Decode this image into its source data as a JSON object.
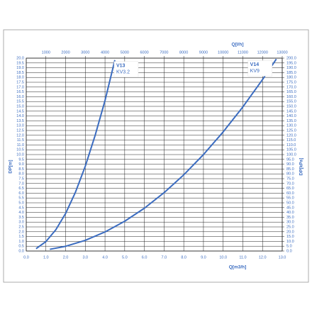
{
  "chart_data": {
    "type": "line",
    "xlabel": "Q[m3/h]",
    "x2label": "Q[l/h]",
    "ylabel": "DP[m]",
    "y2label": "DP[kPa]",
    "grid": true,
    "color_grid": "#222222",
    "xlim": [
      0,
      13
    ],
    "x2lim": [
      0,
      13000
    ],
    "ylim": [
      0,
      20
    ],
    "y2lim": [
      0,
      200
    ],
    "xticks": [
      {
        "value": 0,
        "label": "0.0"
      },
      {
        "value": 1,
        "label": "1.0"
      },
      {
        "value": 2,
        "label": "2.0"
      },
      {
        "value": 3,
        "label": "3.0"
      },
      {
        "value": 4,
        "label": "4.0"
      },
      {
        "value": 5,
        "label": "5.0"
      },
      {
        "value": 6,
        "label": "6.0"
      },
      {
        "value": 7,
        "label": "7.0"
      },
      {
        "value": 8,
        "label": "8.0"
      },
      {
        "value": 9,
        "label": "9.0"
      },
      {
        "value": 10,
        "label": "10.0"
      },
      {
        "value": 11,
        "label": "11.0"
      },
      {
        "value": 12,
        "label": "12.0"
      },
      {
        "value": 13,
        "label": "13.0"
      }
    ],
    "x2ticks": [
      1000,
      2000,
      3000,
      4000,
      5000,
      6000,
      7000,
      8000,
      9000,
      10000,
      11000,
      12000,
      13000
    ],
    "yticks": [
      {
        "value": 0,
        "label": "0.0"
      },
      {
        "value": 0.5,
        "label": "0.5"
      },
      {
        "value": 1,
        "label": "1.0"
      },
      {
        "value": 1.5,
        "label": "1.5"
      },
      {
        "value": 2,
        "label": "2.0"
      },
      {
        "value": 2.5,
        "label": "2.5"
      },
      {
        "value": 3,
        "label": "3.0"
      },
      {
        "value": 3.5,
        "label": "3.5"
      },
      {
        "value": 4,
        "label": "4.0"
      },
      {
        "value": 4.5,
        "label": "4.5"
      },
      {
        "value": 5,
        "label": "5.0"
      },
      {
        "value": 5.5,
        "label": "5.5"
      },
      {
        "value": 6,
        "label": "6.0"
      },
      {
        "value": 6.5,
        "label": "6.5"
      },
      {
        "value": 7,
        "label": "7.0"
      },
      {
        "value": 7.5,
        "label": "7.5"
      },
      {
        "value": 8,
        "label": "8.0"
      },
      {
        "value": 8.5,
        "label": "8.5"
      },
      {
        "value": 9,
        "label": "9.0"
      },
      {
        "value": 9.5,
        "label": "9.5"
      },
      {
        "value": 10,
        "label": "10.0"
      },
      {
        "value": 10.5,
        "label": "10.5"
      },
      {
        "value": 11,
        "label": "11.0"
      },
      {
        "value": 11.5,
        "label": "11.5"
      },
      {
        "value": 12,
        "label": "12.0"
      },
      {
        "value": 12.5,
        "label": "12.5"
      },
      {
        "value": 13,
        "label": "13.0"
      },
      {
        "value": 13.5,
        "label": "13.5"
      },
      {
        "value": 14,
        "label": "14.0"
      },
      {
        "value": 14.5,
        "label": "14.5"
      },
      {
        "value": 15,
        "label": "15.0"
      },
      {
        "value": 15.5,
        "label": "15.5"
      },
      {
        "value": 16,
        "label": "16.0"
      },
      {
        "value": 16.5,
        "label": "16.5"
      },
      {
        "value": 17,
        "label": "17.0"
      },
      {
        "value": 17.5,
        "label": "17.5"
      },
      {
        "value": 18,
        "label": "18.0"
      },
      {
        "value": 18.5,
        "label": "18.5"
      },
      {
        "value": 19,
        "label": "19.0"
      },
      {
        "value": 19.5,
        "label": "19.5"
      },
      {
        "value": 20,
        "label": "20.0"
      }
    ],
    "y2ticks": [
      {
        "value": 0,
        "label": "0.0"
      },
      {
        "value": 5,
        "label": "5.0"
      },
      {
        "value": 10,
        "label": "10.0"
      },
      {
        "value": 15,
        "label": "15.0"
      },
      {
        "value": 20,
        "label": "20.0"
      },
      {
        "value": 25,
        "label": "25.0"
      },
      {
        "value": 30,
        "label": "30.0"
      },
      {
        "value": 35,
        "label": "35.0"
      },
      {
        "value": 40,
        "label": "40.0"
      },
      {
        "value": 45,
        "label": "45.0"
      },
      {
        "value": 50,
        "label": "50.0"
      },
      {
        "value": 55,
        "label": "55.0"
      },
      {
        "value": 60,
        "label": "60.0"
      },
      {
        "value": 65,
        "label": "65.0"
      },
      {
        "value": 70,
        "label": "70.0"
      },
      {
        "value": 75,
        "label": "75.0"
      },
      {
        "value": 80,
        "label": "80.0"
      },
      {
        "value": 85,
        "label": "85.0"
      },
      {
        "value": 90,
        "label": "90.0"
      },
      {
        "value": 95,
        "label": "95.0"
      },
      {
        "value": 100,
        "label": "100.0"
      },
      {
        "value": 105,
        "label": "105.0"
      },
      {
        "value": 110,
        "label": "110.0"
      },
      {
        "value": 115,
        "label": "115.0"
      },
      {
        "value": 120,
        "label": "120.0"
      },
      {
        "value": 125,
        "label": "125.0"
      },
      {
        "value": 130,
        "label": "130.0"
      },
      {
        "value": 135,
        "label": "135.0"
      },
      {
        "value": 140,
        "label": "140.0"
      },
      {
        "value": 145,
        "label": "145.0"
      },
      {
        "value": 150,
        "label": "150.0"
      },
      {
        "value": 155,
        "label": "155.0"
      },
      {
        "value": 160,
        "label": "160.0"
      },
      {
        "value": 165,
        "label": "165.0"
      },
      {
        "value": 170,
        "label": "170.0"
      },
      {
        "value": 175,
        "label": "175.0"
      },
      {
        "value": 180,
        "label": "180.0"
      },
      {
        "value": 185,
        "label": "185.0"
      },
      {
        "value": 190,
        "label": "190.0"
      },
      {
        "value": 195,
        "label": "195.0"
      },
      {
        "value": 200,
        "label": "200.0"
      }
    ],
    "series": [
      {
        "name": "V13",
        "label2": "KV3.2",
        "color": "#3b6cc0",
        "x": [
          0.5,
          1,
          1.5,
          2,
          2.5,
          3,
          3.5,
          4,
          4.5
        ],
        "values": [
          0.24,
          0.98,
          2.2,
          3.9,
          6.1,
          8.8,
          12,
          15.6,
          19.8
        ]
      },
      {
        "name": "V14",
        "label2": "KV9",
        "color": "#3b6cc0",
        "x": [
          1.2,
          2,
          3,
          4,
          5,
          6,
          7,
          8,
          9,
          10,
          11,
          12,
          12.7
        ],
        "values": [
          0.18,
          0.49,
          1.11,
          1.98,
          3.09,
          4.44,
          6.05,
          7.9,
          10,
          12.35,
          14.94,
          17.78,
          19.9
        ]
      }
    ]
  }
}
